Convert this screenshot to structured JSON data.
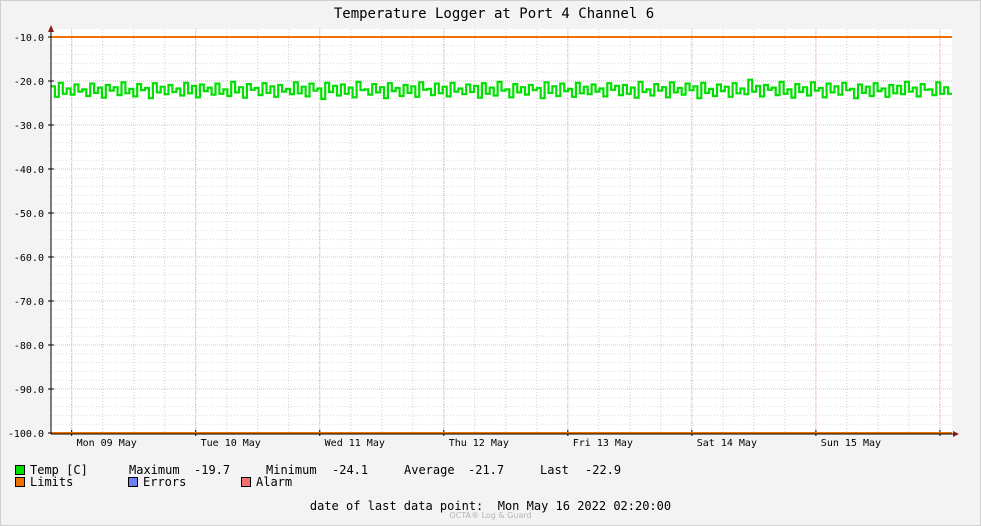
{
  "chart_data": {
    "type": "line",
    "title": "Temperature Logger at Port 4 Channel 6",
    "ylim": [
      -100,
      -10
    ],
    "yticks": [
      "-10.0",
      "-20.0",
      "-30.0",
      "-40.0",
      "-50.0",
      "-60.0",
      "-70.0",
      "-80.0",
      "-90.0",
      "-100.0"
    ],
    "ytick_values": [
      -10,
      -20,
      -30,
      -40,
      -50,
      -60,
      -70,
      -80,
      -90,
      -100
    ],
    "xlim": [
      "2022-05-08 20:00",
      "2022-05-16 02:20"
    ],
    "xticks": [
      "Mon 09 May",
      "Tue 10 May",
      "Wed 11 May",
      "Thu 12 May",
      "Fri 13 May",
      "Sat 14 May",
      "Sun 15 May"
    ],
    "grid": true,
    "series": [
      {
        "name": "Temp [C]",
        "color": "#00e000",
        "summary": {
          "min": -24.1,
          "max": -19.7,
          "avg": -21.7,
          "last": -22.9
        },
        "values": [
          -21.2,
          -23.6,
          -20.4,
          -22.9,
          -21.7,
          -23.1,
          -20.8,
          -22.4,
          -21.9,
          -23.4,
          -20.6,
          -22.7,
          -21.5,
          -23.8,
          -20.9,
          -22.2,
          -21.4,
          -23.2,
          -20.3,
          -22.8,
          -21.8,
          -23.5,
          -20.7,
          -22.1,
          -21.6,
          -23.9,
          -20.5,
          -22.6,
          -21.3,
          -23.0,
          -20.9,
          -22.5,
          -21.7,
          -23.3,
          -20.4,
          -22.8,
          -21.1,
          -23.7,
          -20.8,
          -22.3,
          -21.5,
          -23.1,
          -20.6,
          -22.9,
          -21.9,
          -23.4,
          -20.2,
          -22.6,
          -21.4,
          -23.8,
          -20.7,
          -22.0,
          -21.6,
          -23.2,
          -20.5,
          -22.7,
          -21.2,
          -23.6,
          -20.9,
          -22.4,
          -21.8,
          -23.0,
          -20.3,
          -22.8,
          -21.3,
          -23.5,
          -20.6,
          -22.2,
          -21.7,
          -24.1,
          -20.4,
          -22.5,
          -21.1,
          -23.3,
          -20.8,
          -22.9,
          -21.5,
          -23.7,
          -20.2,
          -22.1,
          -21.9,
          -23.1,
          -20.7,
          -22.6,
          -21.4,
          -23.9,
          -20.5,
          -22.3,
          -21.6,
          -23.4,
          -20.9,
          -22.7,
          -21.2,
          -23.6,
          -20.3,
          -22.0,
          -21.8,
          -23.2,
          -20.6,
          -22.8,
          -21.3,
          -23.5,
          -20.4,
          -22.4,
          -21.7,
          -23.0,
          -20.8,
          -22.5,
          -21.1,
          -23.8,
          -20.5,
          -22.9,
          -21.5,
          -23.3,
          -20.2,
          -22.2,
          -21.9,
          -23.7,
          -20.7,
          -22.6,
          -21.4,
          -23.1,
          -20.9,
          -22.1,
          -21.6,
          -23.9,
          -20.3,
          -22.7,
          -21.2,
          -23.4,
          -20.6,
          -22.3,
          -21.8,
          -23.6,
          -20.4,
          -22.8,
          -21.3,
          -23.0,
          -20.8,
          -22.4,
          -21.7,
          -23.5,
          -20.5,
          -22.0,
          -21.1,
          -23.2,
          -20.9,
          -22.9,
          -21.5,
          -23.8,
          -20.2,
          -22.5,
          -21.9,
          -23.3,
          -20.7,
          -22.2,
          -21.4,
          -23.7,
          -20.3,
          -22.6,
          -21.6,
          -23.1,
          -20.6,
          -22.1,
          -21.2,
          -23.9,
          -20.4,
          -22.7,
          -21.8,
          -23.4,
          -20.8,
          -22.3,
          -21.3,
          -23.6,
          -20.5,
          -22.8,
          -21.7,
          -23.0,
          -19.7,
          -22.4,
          -21.1,
          -23.5,
          -20.9,
          -22.0,
          -21.5,
          -23.2,
          -20.2,
          -22.9,
          -21.9,
          -23.8,
          -20.7,
          -22.5,
          -21.4,
          -23.3,
          -20.3,
          -22.2,
          -21.6,
          -23.7,
          -20.6,
          -22.6,
          -21.2,
          -23.1,
          -20.4,
          -22.1,
          -21.8,
          -23.9,
          -20.8,
          -22.7,
          -21.3,
          -23.4,
          -20.5,
          -22.3,
          -21.7,
          -23.6,
          -20.9,
          -22.8,
          -21.1,
          -23.0,
          -20.2,
          -22.4,
          -21.5,
          -23.5,
          -20.7,
          -22.0,
          -21.9,
          -23.2,
          -20.3,
          -22.9,
          -21.4,
          -22.9
        ]
      },
      {
        "name": "Limits",
        "color": "#f07000",
        "values": [
          -10,
          -100
        ]
      }
    ]
  },
  "legend": {
    "temp": {
      "label": "Temp [C]",
      "color": "#00e000"
    },
    "limits": {
      "label": "Limits",
      "color": "#f07000"
    },
    "errors": {
      "label": "Errors",
      "color": "#7080f0"
    },
    "alarm": {
      "label": "Alarm",
      "color": "#f07070"
    },
    "stats": {
      "max_label": "Maximum",
      "max_value": "-19.7",
      "min_label": "Minimum",
      "min_value": "-24.1",
      "avg_label": "Average",
      "avg_value": "-21.7",
      "last_label": "Last",
      "last_value": "-22.9"
    }
  },
  "footer": {
    "label": "date of last data point:",
    "value": "Mon May 16 2022 02:20:00",
    "watermark": "OCTA® Log & Guard"
  }
}
